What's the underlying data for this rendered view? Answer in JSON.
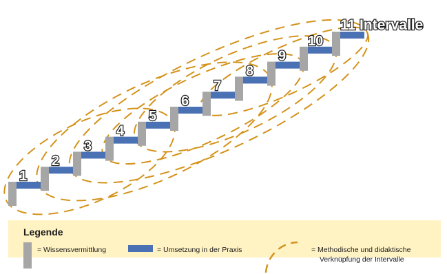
{
  "diagram": {
    "interval_labels": [
      "1",
      "2",
      "3",
      "4",
      "5",
      "6",
      "7",
      "8",
      "9",
      "10",
      "11 Intervalle"
    ],
    "colors": {
      "knowledge": "#a6a6a6",
      "practice": "#4a71b3",
      "link": "#d4921a",
      "legend_bg": "#fff3c4"
    }
  },
  "legend": {
    "title": "Legende",
    "items": [
      {
        "key": "knowledge",
        "label": "= Wissensvermittlung"
      },
      {
        "key": "practice",
        "label": "= Umsetzung in der Praxis"
      },
      {
        "key": "link",
        "label_line1": "= Methodische und didaktische",
        "label_line2": "Verknüpfung der Intervalle"
      }
    ]
  }
}
